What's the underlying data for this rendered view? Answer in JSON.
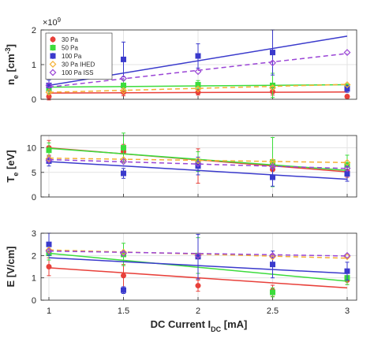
{
  "chart_data": [
    {
      "type": "scatter",
      "ylabel": "n_e [cm^-3]",
      "ylabel_main": "n",
      "ylabel_sub": "e",
      "ylabel_unit": " [cm",
      "ylabel_unit_sup": "-3",
      "ylabel_unit_end": "]",
      "exponent_base": "×10",
      "exponent_power": "9",
      "xlim": [
        1,
        3
      ],
      "ylim": [
        0,
        2
      ],
      "yticks": [
        "0",
        "1",
        "2"
      ],
      "grid": true,
      "legend_position": "top-left",
      "series": [
        {
          "name": "30 Pa",
          "color": "#e8403a",
          "marker": "circle",
          "fit": "solid",
          "x": [
            1,
            1.5,
            2,
            2.5,
            3
          ],
          "y": [
            0.08,
            0.2,
            0.2,
            0.22,
            0.08
          ],
          "err": [
            0.1,
            0.1,
            0.08,
            0.1,
            0.05
          ],
          "fit_y": [
            0.18,
            0.21
          ]
        },
        {
          "name": "50 Pa",
          "color": "#3cdc3c",
          "marker": "square",
          "fit": "solid",
          "x": [
            1,
            1.5,
            2,
            2.5,
            3
          ],
          "y": [
            0.3,
            0.4,
            0.42,
            0.4,
            0.35
          ],
          "err": [
            0.15,
            0.15,
            0.12,
            0.35,
            0.1
          ],
          "fit_y": [
            0.35,
            0.42
          ]
        },
        {
          "name": "100 Pa",
          "color": "#3a3acc",
          "marker": "square",
          "fit": "solid",
          "x": [
            1,
            1.5,
            2,
            2.5,
            3
          ],
          "y": [
            0.4,
            1.15,
            1.25,
            1.35,
            0.3
          ],
          "err": [
            0.15,
            0.5,
            0.35,
            0.65,
            0.1
          ],
          "fit_y": [
            0.4,
            1.82
          ]
        },
        {
          "name": "30 Pa IHED",
          "color": "#f5b135",
          "marker": "diamond",
          "fit": "dashed",
          "x": [
            1,
            1.5,
            2,
            2.5,
            3
          ],
          "y": [
            0.2,
            0.25,
            0.3,
            0.33,
            0.42
          ],
          "err": [
            0,
            0,
            0,
            0,
            0
          ],
          "fit_y": [
            0.2,
            0.43
          ]
        },
        {
          "name": "100 Pa ISS",
          "color": "#9a45d6",
          "marker": "diamond",
          "fit": "dashed",
          "x": [
            1,
            1.5,
            2,
            2.5,
            3
          ],
          "y": [
            0.4,
            0.6,
            0.8,
            1.05,
            1.35
          ],
          "err": [
            0,
            0,
            0,
            0,
            0
          ],
          "fit_y": [
            0.35,
            1.32
          ]
        }
      ]
    },
    {
      "type": "scatter",
      "ylabel": "T_e [eV]",
      "ylabel_main": "T",
      "ylabel_sub": "e",
      "ylabel_unit": " [eV]",
      "xlim": [
        1,
        3
      ],
      "ylim": [
        0,
        12.5
      ],
      "yticks": [
        "0",
        "5",
        "10"
      ],
      "grid": true,
      "series": [
        {
          "name": "30 Pa",
          "color": "#e8403a",
          "marker": "circle",
          "fit": "solid",
          "x": [
            1,
            1.5,
            2,
            2.5,
            3
          ],
          "y": [
            10,
            9.2,
            6.3,
            5.6,
            5.2
          ],
          "err": [
            1.5,
            1.5,
            3.5,
            1.5,
            1.2
          ],
          "fit_y": [
            10,
            5.1
          ]
        },
        {
          "name": "50 Pa",
          "color": "#3cdc3c",
          "marker": "square",
          "fit": "solid",
          "x": [
            1,
            1.5,
            2,
            2.5,
            3
          ],
          "y": [
            9.5,
            10,
            7.2,
            7.1,
            6.5
          ],
          "err": [
            1.5,
            3,
            2,
            5,
            2
          ],
          "fit_y": [
            9.9,
            5.4
          ]
        },
        {
          "name": "100 Pa",
          "color": "#3a3acc",
          "marker": "square",
          "fit": "solid",
          "x": [
            1,
            1.5,
            2,
            2.5,
            3
          ],
          "y": [
            7.3,
            4.8,
            6.3,
            4,
            4.7
          ],
          "err": [
            1,
            1,
            1.8,
            1.8,
            1.5
          ],
          "fit_y": [
            7.2,
            3.6
          ]
        },
        {
          "name": "30 Pa IHED",
          "color": "#f5b135",
          "marker": "diamond",
          "fit": "dashed",
          "x": [
            1,
            1.5,
            2,
            2.5,
            3
          ],
          "y": [
            7.8,
            7.6,
            7.4,
            7.2,
            7.0
          ],
          "err": [
            0,
            0,
            0,
            0,
            0
          ],
          "fit_y": [
            7.9,
            7.0
          ]
        },
        {
          "name": "100 Pa ISS",
          "color": "#9a45d6",
          "marker": "diamond",
          "fit": "dashed",
          "x": [
            1,
            1.5,
            2,
            2.5,
            3
          ],
          "y": [
            7.5,
            7.2,
            6.8,
            6.2,
            5.8
          ],
          "err": [
            0,
            0,
            0,
            0,
            0
          ],
          "fit_y": [
            7.6,
            5.8
          ]
        }
      ]
    },
    {
      "type": "scatter",
      "ylabel": "E [V/cm]",
      "ylabel_main": "E [V/cm]",
      "xlabel": "DC Current I_DC [mA]",
      "xlabel_main": "DC Current I",
      "xlabel_sub": "DC",
      "xlabel_unit": " [mA]",
      "xlim": [
        1,
        3
      ],
      "ylim": [
        0,
        3
      ],
      "yticks": [
        "0",
        "1",
        "2",
        "3"
      ],
      "xticks": [
        "1",
        "1.5",
        "2",
        "2.5",
        "3"
      ],
      "grid": true,
      "series": [
        {
          "name": "30 Pa",
          "color": "#e8403a",
          "marker": "circle",
          "fit": "solid",
          "x": [
            1,
            1.5,
            2,
            2.5,
            3
          ],
          "y": [
            1.5,
            1.1,
            0.65,
            0.42,
            0.9
          ],
          "err": [
            0.4,
            0.5,
            0.25,
            0.25,
            0.2
          ],
          "fit_y": [
            1.45,
            0.55
          ]
        },
        {
          "name": "50 Pa",
          "color": "#3cdc3c",
          "marker": "square",
          "fit": "solid",
          "x": [
            1,
            1.5,
            2,
            2.5,
            3
          ],
          "y": [
            2.1,
            2.05,
            2.0,
            0.35,
            1.0
          ],
          "err": [
            0.3,
            0.5,
            0.8,
            0.2,
            0.3
          ],
          "fit_y": [
            2.1,
            0.85
          ]
        },
        {
          "name": "100 Pa",
          "color": "#3a3acc",
          "marker": "square",
          "fit": "solid",
          "x": [
            1,
            1.5,
            2,
            2.5,
            3
          ],
          "y": [
            2.5,
            0.45,
            1.95,
            1.6,
            1.3
          ],
          "err": [
            0.5,
            0.15,
            1.0,
            0.6,
            0.4
          ],
          "fit_y": [
            1.9,
            1.2
          ]
        },
        {
          "name": "30 Pa IHED",
          "color": "#f5b135",
          "marker": "diamond",
          "fit": "dashed",
          "x": [
            1,
            1.5,
            2,
            2.5,
            3
          ],
          "y": [
            2.25,
            2.15,
            2.0,
            1.95,
            1.95
          ],
          "err": [
            0,
            0,
            0,
            0,
            0
          ],
          "fit_y": [
            2.25,
            1.88
          ]
        },
        {
          "name": "100 Pa ISS",
          "color": "#9a45d6",
          "marker": "diamond",
          "fit": "dashed",
          "x": [
            1,
            1.5,
            2,
            2.5,
            3
          ],
          "y": [
            2.2,
            2.1,
            2.0,
            2.0,
            2.0
          ],
          "err": [
            0,
            0,
            0,
            0,
            0
          ],
          "fit_y": [
            2.2,
            1.98
          ]
        }
      ]
    }
  ]
}
